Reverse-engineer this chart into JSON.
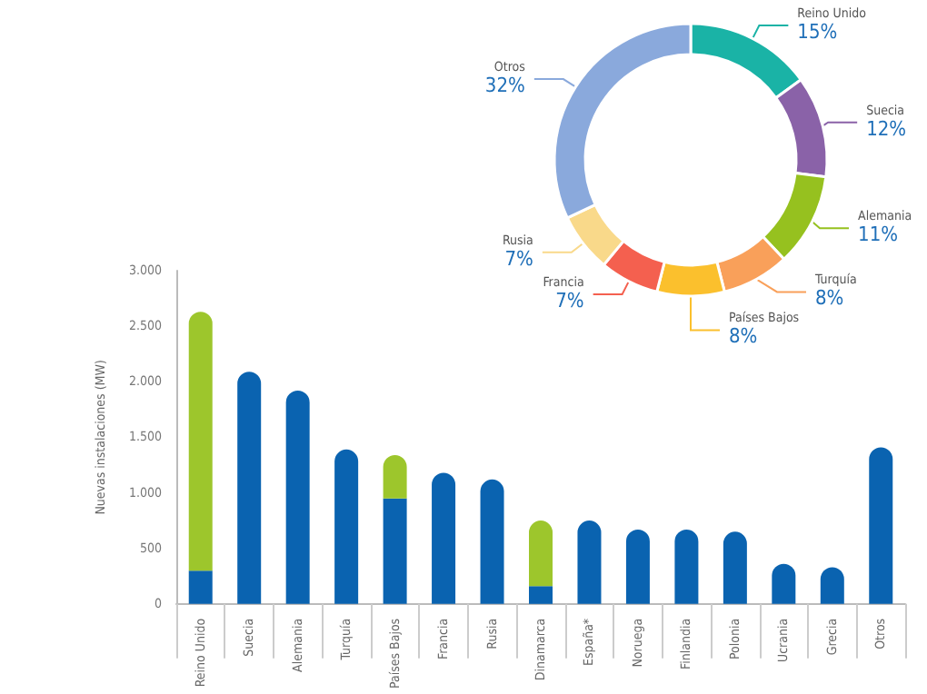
{
  "chart_data": [
    {
      "type": "donut",
      "categories": [
        "Reino Unido",
        "Suecia",
        "Alemania",
        "Turquía",
        "Países Bajos",
        "Francia",
        "Rusia",
        "Otros"
      ],
      "values": [
        15,
        12,
        11,
        8,
        8,
        7,
        7,
        32
      ],
      "value_labels": [
        "15%",
        "12%",
        "11%",
        "8%",
        "8%",
        "7%",
        "7%",
        "32%"
      ],
      "colors": [
        "#1ab3a6",
        "#8a62a8",
        "#96c11f",
        "#f9a05a",
        "#fbc02d",
        "#f4604f",
        "#f9d98a",
        "#8aa9dc"
      ]
    },
    {
      "type": "bar",
      "stacked": true,
      "ylabel": "Nuevas instalaciones (MW)",
      "categories": [
        "Reino Unido",
        "Suecia",
        "Alemania",
        "Turquía",
        "Países Bajos",
        "Francia",
        "Rusia",
        "Dinamarca",
        "España*",
        "Noruega",
        "Finlandia",
        "Polonia",
        "Ucrania",
        "Grecia",
        "Otros"
      ],
      "series": [
        {
          "color": "#0a63b0",
          "values": [
            300,
            2090,
            1920,
            1390,
            950,
            1180,
            1120,
            160,
            750,
            670,
            670,
            650,
            360,
            330,
            1410
          ]
        },
        {
          "color": "#9dc62c",
          "values": [
            2330,
            null,
            null,
            null,
            390,
            null,
            null,
            590,
            null,
            null,
            null,
            null,
            null,
            null,
            null
          ]
        }
      ],
      "ylim": [
        0,
        3000
      ],
      "yticks": [
        {
          "value": 0,
          "label": "0"
        },
        {
          "value": 500,
          "label": "500"
        },
        {
          "value": 1000,
          "label": "1.000"
        },
        {
          "value": 1500,
          "label": "1.500"
        },
        {
          "value": 2000,
          "label": "2.000"
        },
        {
          "value": 2500,
          "label": "2.500"
        },
        {
          "value": 3000,
          "label": "3.000"
        }
      ],
      "grid": false
    }
  ]
}
